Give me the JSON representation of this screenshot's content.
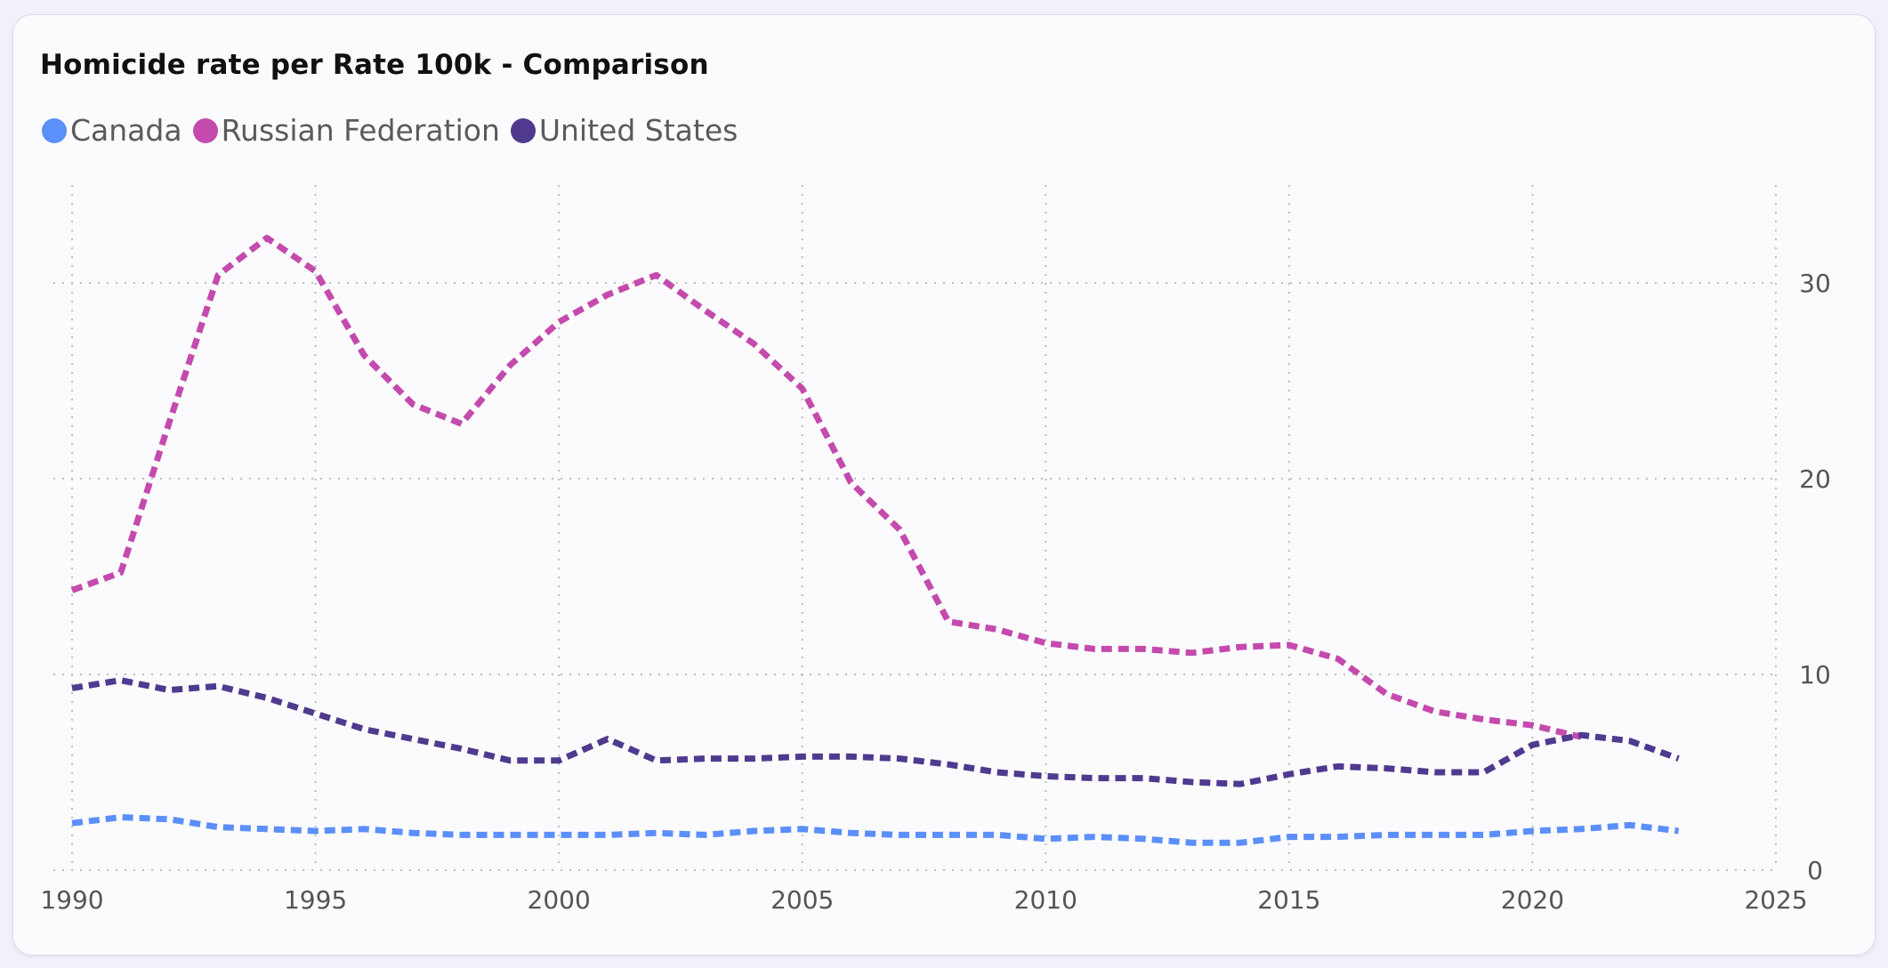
{
  "chart_data": {
    "type": "line",
    "title": "Homicide rate per Rate 100k - Comparison",
    "xlabel": "",
    "ylabel": "",
    "xlim": [
      1990,
      2025
    ],
    "ylim": [
      0,
      35
    ],
    "x_ticks": [
      "1990",
      "1995",
      "2000",
      "2005",
      "2010",
      "2015",
      "2020",
      "2025"
    ],
    "y_ticks": [
      "0",
      "10",
      "20",
      "30"
    ],
    "grid": true,
    "legend_position": "top-left",
    "line_style": "dashed",
    "series": [
      {
        "name": "Canada",
        "color": "#5b8ff9",
        "x": [
          1990,
          1991,
          1992,
          1993,
          1994,
          1995,
          1996,
          1997,
          1998,
          1999,
          2000,
          2001,
          2002,
          2003,
          2004,
          2005,
          2006,
          2007,
          2008,
          2009,
          2010,
          2011,
          2012,
          2013,
          2014,
          2015,
          2016,
          2017,
          2018,
          2019,
          2020,
          2021,
          2022,
          2023
        ],
        "values": [
          2.4,
          2.7,
          2.6,
          2.2,
          2.1,
          2.0,
          2.1,
          1.9,
          1.8,
          1.8,
          1.8,
          1.8,
          1.9,
          1.8,
          2.0,
          2.1,
          1.9,
          1.8,
          1.8,
          1.8,
          1.6,
          1.7,
          1.6,
          1.4,
          1.4,
          1.7,
          1.7,
          1.8,
          1.8,
          1.8,
          2.0,
          2.1,
          2.3,
          2.0
        ]
      },
      {
        "name": "Russian Federation",
        "color": "#c44aad",
        "x": [
          1990,
          1991,
          1992,
          1993,
          1994,
          1995,
          1996,
          1997,
          1998,
          1999,
          2000,
          2001,
          2002,
          2003,
          2004,
          2005,
          2006,
          2007,
          2008,
          2009,
          2010,
          2011,
          2012,
          2013,
          2014,
          2015,
          2016,
          2017,
          2018,
          2019,
          2020,
          2021
        ],
        "values": [
          14.3,
          15.2,
          22.9,
          30.4,
          32.3,
          30.6,
          26.3,
          23.8,
          22.8,
          25.8,
          28.0,
          29.4,
          30.4,
          28.6,
          26.9,
          24.6,
          19.8,
          17.4,
          12.7,
          12.3,
          11.6,
          11.3,
          11.3,
          11.1,
          11.4,
          11.5,
          10.8,
          9.0,
          8.1,
          7.7,
          7.4,
          6.8
        ]
      },
      {
        "name": "United States",
        "color": "#4f3a8f",
        "x": [
          1990,
          1991,
          1992,
          1993,
          1994,
          1995,
          1996,
          1997,
          1998,
          1999,
          2000,
          2001,
          2002,
          2003,
          2004,
          2005,
          2006,
          2007,
          2008,
          2009,
          2010,
          2011,
          2012,
          2013,
          2014,
          2015,
          2016,
          2017,
          2018,
          2019,
          2020,
          2021,
          2022,
          2023
        ],
        "values": [
          9.3,
          9.7,
          9.2,
          9.4,
          8.8,
          8.0,
          7.2,
          6.7,
          6.2,
          5.6,
          5.6,
          6.7,
          5.6,
          5.7,
          5.7,
          5.8,
          5.8,
          5.7,
          5.4,
          5.0,
          4.8,
          4.7,
          4.7,
          4.5,
          4.4,
          4.9,
          5.3,
          5.2,
          5.0,
          5.0,
          6.4,
          6.9,
          6.6,
          5.7
        ]
      }
    ]
  }
}
